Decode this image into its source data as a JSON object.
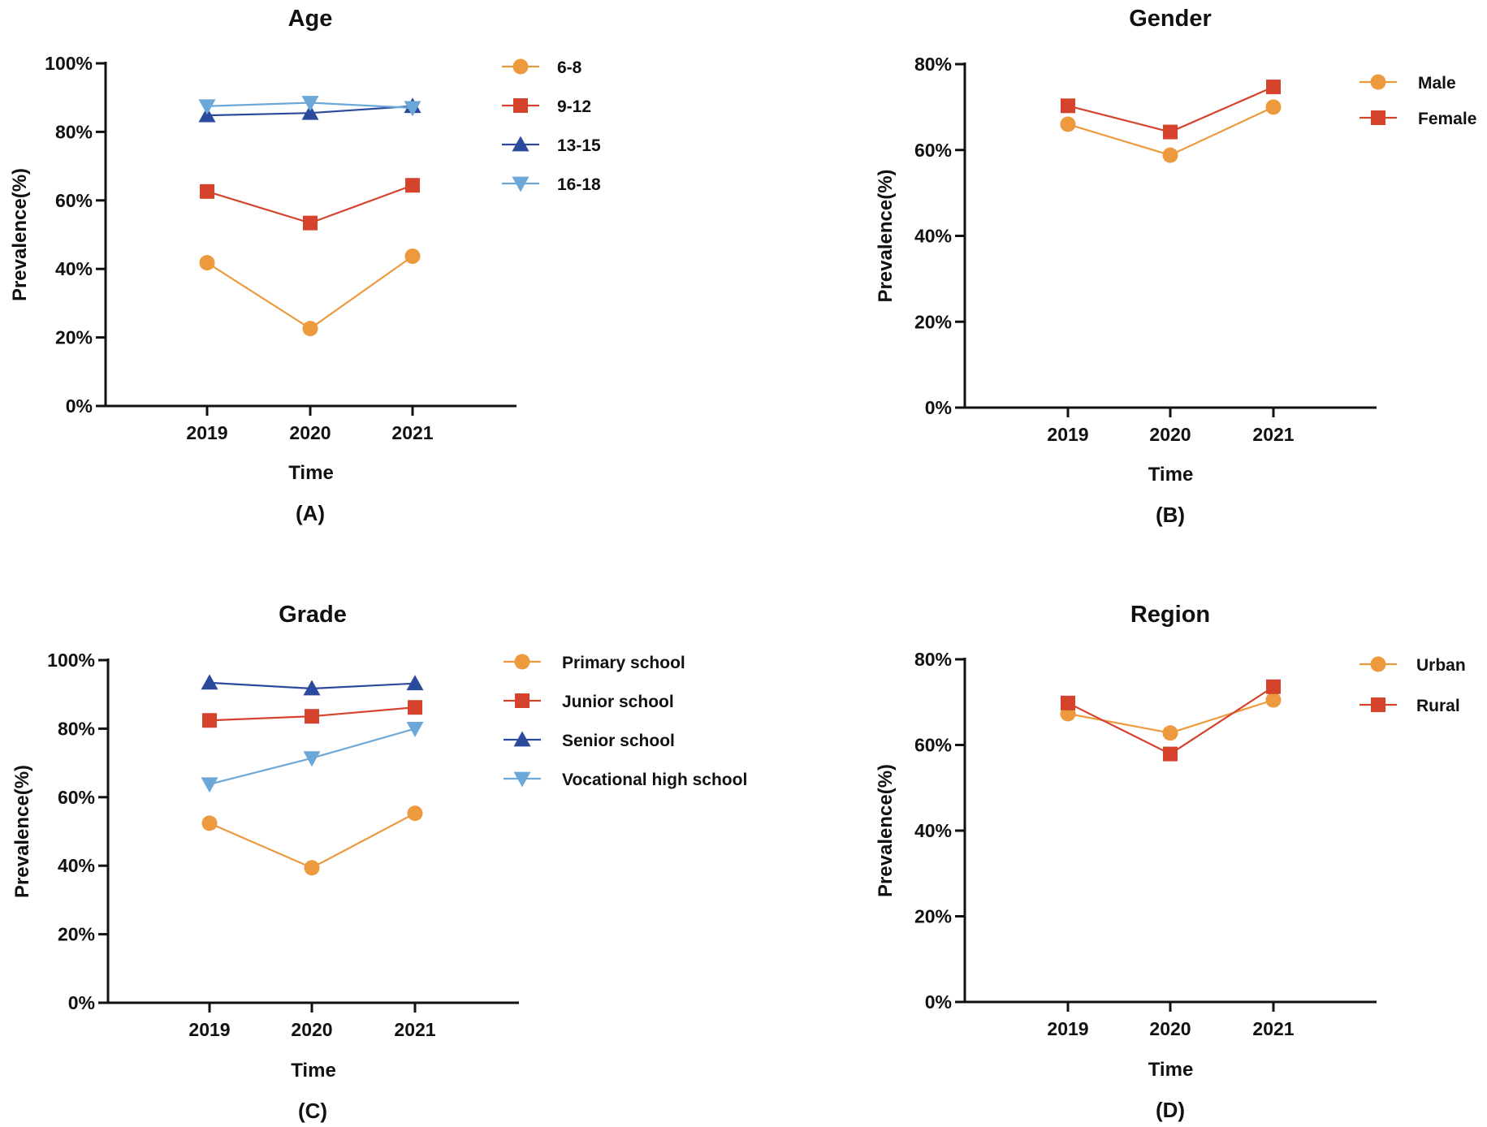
{
  "figure": {
    "colors": {
      "orange": "#ED9A3E",
      "red": "#D5432C",
      "navy": "#2C4A9C",
      "lightblue": "#6BA8D8",
      "axis": "#111111",
      "text": "#111111"
    }
  },
  "chart_data": [
    {
      "type": "line",
      "panel": "(A)",
      "title": "Age",
      "xlabel": "Time",
      "ylabel": "Prevalence(%)",
      "categories": [
        "2019",
        "2020",
        "2021"
      ],
      "yticks": [
        "0%",
        "20%",
        "40%",
        "60%",
        "80%",
        "100%"
      ],
      "ylim": [
        0,
        100
      ],
      "legend_position": "top-right",
      "series": [
        {
          "name": "6-8",
          "marker": "circle",
          "color": "#ED9A3E",
          "values": [
            41.8,
            22.6,
            43.7
          ]
        },
        {
          "name": "9-12",
          "marker": "square",
          "color": "#D5432C",
          "values": [
            62.6,
            53.4,
            64.4
          ]
        },
        {
          "name": "13-15",
          "marker": "triangle-up",
          "color": "#2C4A9C",
          "values": [
            84.8,
            85.5,
            87.5
          ]
        },
        {
          "name": "16-18",
          "marker": "triangle-down",
          "color": "#6BA8D8",
          "values": [
            87.5,
            88.5,
            87.0
          ]
        }
      ]
    },
    {
      "type": "line",
      "panel": "(B)",
      "title": "Gender",
      "xlabel": "Time",
      "ylabel": "Prevalence(%)",
      "categories": [
        "2019",
        "2020",
        "2021"
      ],
      "yticks": [
        "0%",
        "20%",
        "40%",
        "60%",
        "80%"
      ],
      "ylim": [
        0,
        80
      ],
      "legend_position": "top-right",
      "series": [
        {
          "name": "Male",
          "marker": "circle",
          "color": "#ED9A3E",
          "values": [
            66.0,
            58.8,
            70.0
          ]
        },
        {
          "name": "Female",
          "marker": "square",
          "color": "#D5432C",
          "values": [
            70.3,
            64.2,
            74.7
          ]
        }
      ]
    },
    {
      "type": "line",
      "panel": "(C)",
      "title": "Grade",
      "xlabel": "Time",
      "ylabel": "Prevalence(%)",
      "categories": [
        "2019",
        "2020",
        "2021"
      ],
      "yticks": [
        "0%",
        "20%",
        "40%",
        "60%",
        "80%",
        "100%"
      ],
      "ylim": [
        0,
        100
      ],
      "legend_position": "top-right",
      "series": [
        {
          "name": "Primary school",
          "marker": "circle",
          "color": "#ED9A3E",
          "values": [
            52.4,
            39.4,
            55.3
          ]
        },
        {
          "name": "Junior school",
          "marker": "square",
          "color": "#D5432C",
          "values": [
            82.4,
            83.6,
            86.2
          ]
        },
        {
          "name": "Senior school",
          "marker": "triangle-up",
          "color": "#2C4A9C",
          "values": [
            93.4,
            91.7,
            93.2
          ]
        },
        {
          "name": "Vocational high school",
          "marker": "triangle-down",
          "color": "#6BA8D8",
          "values": [
            63.8,
            71.4,
            80.0
          ]
        }
      ]
    },
    {
      "type": "line",
      "panel": "(D)",
      "title": "Region",
      "xlabel": "Time",
      "ylabel": "Prevalence(%)",
      "categories": [
        "2019",
        "2020",
        "2021"
      ],
      "yticks": [
        "0%",
        "20%",
        "40%",
        "60%",
        "80%"
      ],
      "ylim": [
        0,
        80
      ],
      "legend_position": "top-right",
      "series": [
        {
          "name": "Urban",
          "marker": "circle",
          "color": "#ED9A3E",
          "values": [
            67.3,
            62.8,
            70.5
          ]
        },
        {
          "name": "Rural",
          "marker": "square",
          "color": "#D5432C",
          "values": [
            69.8,
            57.9,
            73.6
          ]
        }
      ]
    }
  ]
}
